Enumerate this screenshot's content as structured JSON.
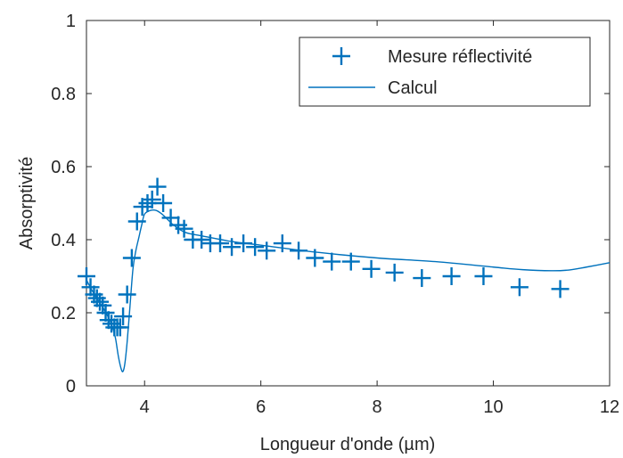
{
  "chart_data": {
    "type": "line",
    "xlabel": "Longueur d'onde (µm)",
    "ylabel": "Absorptivité",
    "xlim": [
      3,
      12
    ],
    "ylim": [
      0,
      1
    ],
    "x_ticks": [
      4,
      6,
      8,
      10,
      12
    ],
    "y_ticks": [
      0,
      0.2,
      0.4,
      0.6,
      0.8,
      1
    ],
    "x_tick_labels": [
      "4",
      "6",
      "8",
      "10",
      "12"
    ],
    "y_tick_labels": [
      "0",
      "0.2",
      "0.4",
      "0.6",
      "0.8",
      "1"
    ],
    "grid": false,
    "legend_position": "top-right",
    "series": [
      {
        "name": "Mesure réflectivité",
        "style": "markers",
        "marker": "plus",
        "color": "#0072bd",
        "x": [
          3.0,
          3.07,
          3.13,
          3.18,
          3.23,
          3.28,
          3.33,
          3.38,
          3.43,
          3.48,
          3.53,
          3.58,
          3.63,
          3.7,
          3.78,
          3.87,
          3.96,
          4.05,
          4.13,
          4.22,
          4.32,
          4.45,
          4.58,
          4.68,
          4.83,
          4.98,
          5.13,
          5.3,
          5.5,
          5.7,
          5.9,
          6.1,
          6.37,
          6.65,
          6.93,
          7.22,
          7.55,
          7.9,
          8.3,
          8.77,
          9.28,
          9.83,
          10.45,
          11.15
        ],
        "y": [
          0.3,
          0.27,
          0.25,
          0.24,
          0.23,
          0.22,
          0.2,
          0.18,
          0.17,
          0.16,
          0.16,
          0.16,
          0.19,
          0.25,
          0.35,
          0.45,
          0.49,
          0.5,
          0.51,
          0.545,
          0.5,
          0.46,
          0.44,
          0.43,
          0.4,
          0.4,
          0.39,
          0.39,
          0.38,
          0.39,
          0.38,
          0.37,
          0.39,
          0.37,
          0.35,
          0.34,
          0.34,
          0.32,
          0.31,
          0.295,
          0.3,
          0.3,
          0.27,
          0.265
        ]
      },
      {
        "name": "Calcul",
        "style": "line",
        "color": "#0072bd",
        "x": [
          3.0,
          3.1,
          3.2,
          3.3,
          3.4,
          3.45,
          3.5,
          3.55,
          3.6,
          3.63,
          3.66,
          3.7,
          3.75,
          3.8,
          3.85,
          3.9,
          3.95,
          4.0,
          4.1,
          4.2,
          4.3,
          4.4,
          4.5,
          4.7,
          5.0,
          5.5,
          6.0,
          7.0,
          8.0,
          9.0,
          10.0,
          10.5,
          11.0,
          11.3,
          11.6,
          12.0
        ],
        "y": [
          0.29,
          0.26,
          0.235,
          0.21,
          0.18,
          0.16,
          0.13,
          0.08,
          0.045,
          0.04,
          0.06,
          0.12,
          0.22,
          0.32,
          0.37,
          0.405,
          0.44,
          0.47,
          0.48,
          0.48,
          0.47,
          0.455,
          0.44,
          0.42,
          0.41,
          0.395,
          0.385,
          0.365,
          0.35,
          0.34,
          0.325,
          0.318,
          0.315,
          0.317,
          0.325,
          0.337
        ]
      }
    ]
  }
}
